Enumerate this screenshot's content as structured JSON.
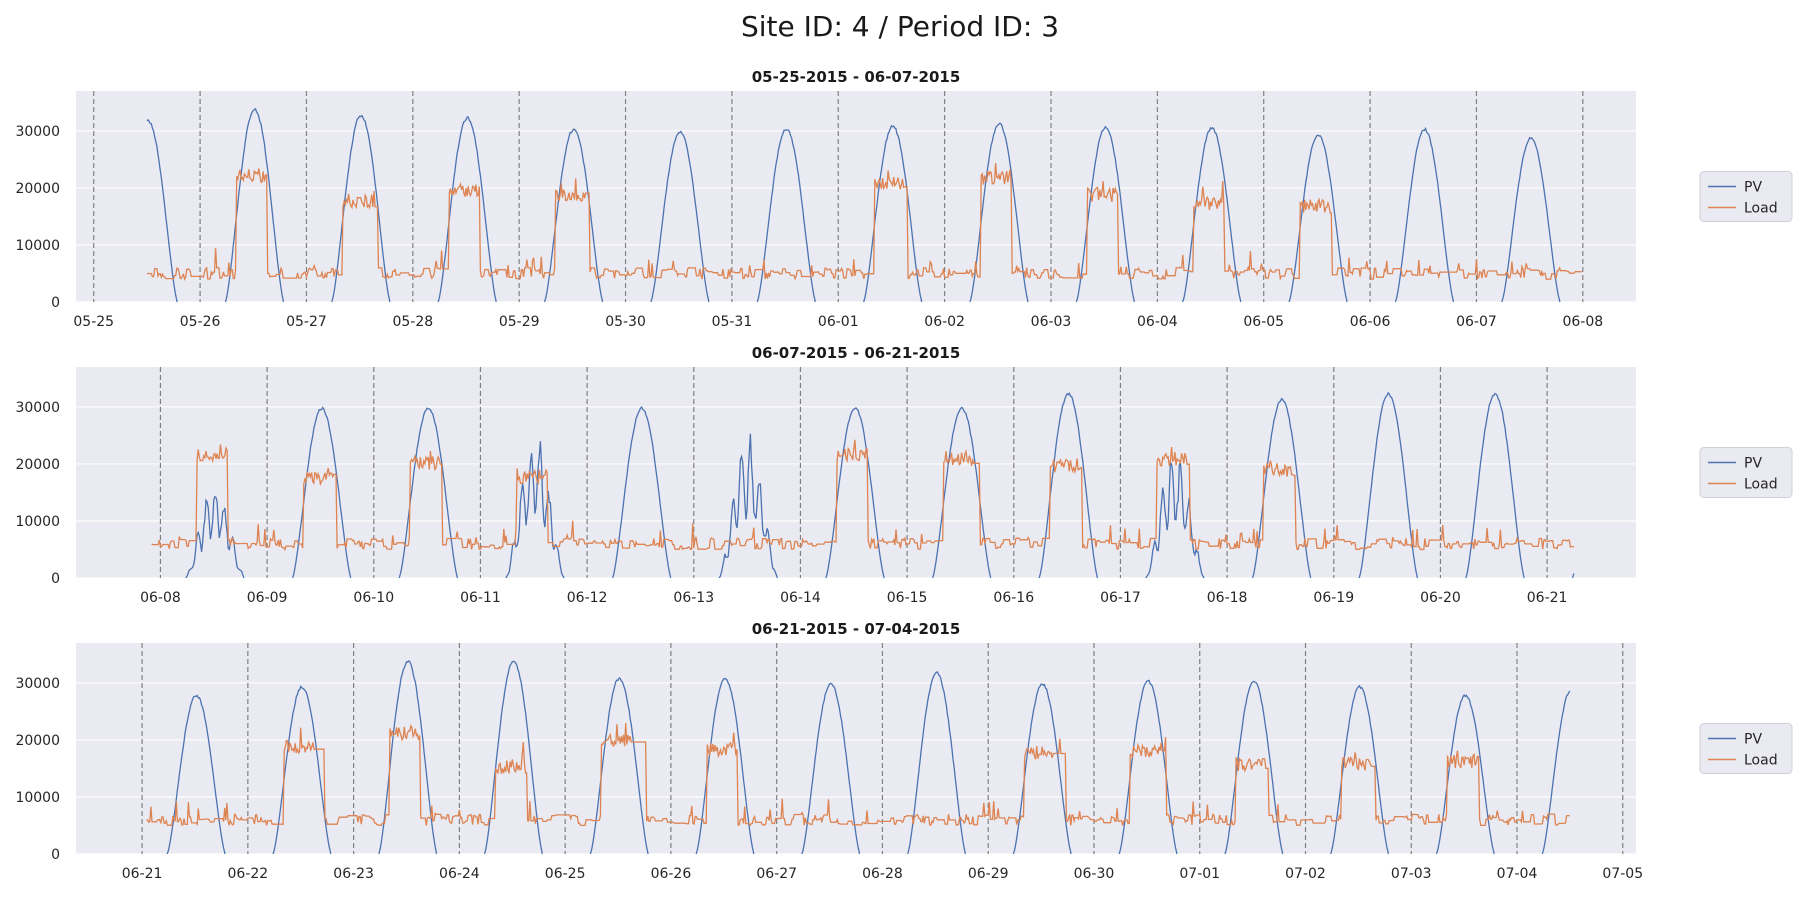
{
  "figure": {
    "suptitle": "Site ID: 4 / Period ID: 3"
  },
  "colors": {
    "pv": "#4c72b0",
    "load": "#dd8452",
    "axes_bg": "#eaeaf2",
    "grid": "#ffffff",
    "day_line": "#808080"
  },
  "chart_data": [
    {
      "type": "line",
      "title": "05-25-2015 - 06-07-2015",
      "xlabel": "",
      "ylabel": "",
      "xlim": [
        "2015-05-24T20:00",
        "2015-06-08T12:00"
      ],
      "ylim": [
        0,
        37000
      ],
      "yticks": [
        0,
        10000,
        20000,
        30000
      ],
      "xticks": [
        "05-25",
        "05-26",
        "05-27",
        "05-28",
        "05-29",
        "05-30",
        "05-31",
        "06-01",
        "06-02",
        "06-03",
        "06-04",
        "06-05",
        "06-06",
        "06-07",
        "06-08"
      ],
      "data_range": [
        "2015-05-25T12:00",
        "2015-06-07T23:45"
      ],
      "legend": {
        "position": "right",
        "entries": [
          "PV",
          "Load"
        ]
      },
      "grid": true,
      "series": [
        {
          "name": "PV",
          "color": "#4c72b0",
          "daily_peak": [
            32000,
            34000,
            33000,
            32500,
            30500,
            30000,
            30500,
            31000,
            31500,
            30800,
            30700,
            29500,
            30500,
            29000
          ]
        },
        {
          "name": "Load",
          "color": "#dd8452",
          "daily_peak": [
            4500,
            23500,
            19000,
            21000,
            20000,
            4500,
            4500,
            22000,
            23000,
            20000,
            18500,
            18000,
            4500,
            4500
          ],
          "night_base": 5000
        }
      ]
    },
    {
      "type": "line",
      "title": "06-07-2015 - 06-21-2015",
      "xlabel": "",
      "ylabel": "",
      "xlim": [
        "2015-06-07T05:00",
        "2015-06-21T20:00"
      ],
      "ylim": [
        0,
        37000
      ],
      "yticks": [
        0,
        10000,
        20000,
        30000
      ],
      "xticks": [
        "06-08",
        "06-09",
        "06-10",
        "06-11",
        "06-12",
        "06-13",
        "06-14",
        "06-15",
        "06-16",
        "06-17",
        "06-18",
        "06-19",
        "06-20",
        "06-21"
      ],
      "data_range": [
        "2015-06-07T22:00",
        "2015-06-21T06:00"
      ],
      "legend": {
        "position": "right",
        "entries": [
          "PV",
          "Load"
        ]
      },
      "grid": true,
      "series": [
        {
          "name": "PV",
          "color": "#4c72b0",
          "daily_peak": [
            30000,
            17000,
            30000,
            30000,
            26000,
            30000,
            26000,
            30000,
            30000,
            32500,
            22500,
            31500,
            32500
          ]
        },
        {
          "name": "Load",
          "color": "#dd8452",
          "daily_peak": [
            19000,
            23000,
            19000,
            21500,
            19000,
            4500,
            4500,
            23000,
            22000,
            21000,
            22000,
            20000,
            4500
          ],
          "night_base": 6000
        }
      ]
    },
    {
      "type": "line",
      "title": "06-21-2015 - 07-04-2015",
      "xlabel": "",
      "ylabel": "",
      "xlim": [
        "2015-06-20T09:00",
        "2015-07-05T03:00"
      ],
      "ylim": [
        0,
        37000
      ],
      "yticks": [
        0,
        10000,
        20000,
        30000
      ],
      "xticks": [
        "06-21",
        "06-22",
        "06-23",
        "06-24",
        "06-25",
        "06-26",
        "06-27",
        "06-28",
        "06-29",
        "06-30",
        "07-01",
        "07-02",
        "07-03",
        "07-04",
        "07-05"
      ],
      "data_range": [
        "2015-06-21T01:00",
        "2015-07-04T12:00"
      ],
      "legend": {
        "position": "right",
        "entries": [
          "PV",
          "Load"
        ]
      },
      "grid": true,
      "series": [
        {
          "name": "PV",
          "color": "#4c72b0",
          "daily_peak": [
            28000,
            29500,
            34000,
            34000,
            31000,
            31000,
            30000,
            32000,
            30000,
            30500,
            30500,
            29500,
            28000,
            29000
          ]
        },
        {
          "name": "Load",
          "color": "#dd8452",
          "daily_peak": [
            4000,
            20000,
            22500,
            16500,
            21000,
            19500,
            5000,
            4500,
            19000,
            19500,
            17000,
            17000,
            17500,
            6500
          ],
          "night_base": 6000
        }
      ]
    }
  ]
}
